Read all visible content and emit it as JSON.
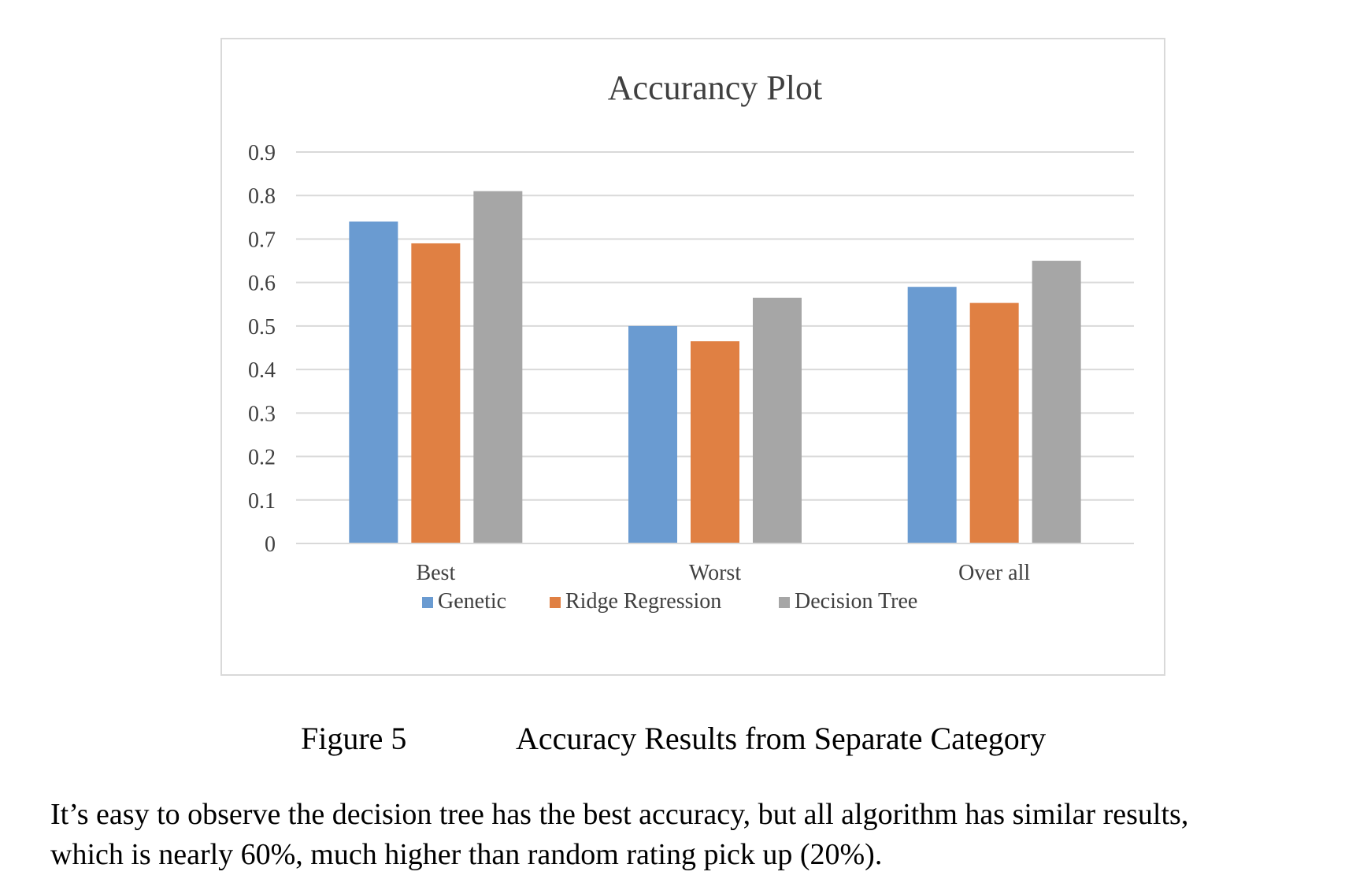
{
  "chart_data": {
    "type": "bar",
    "title": "Accurancy Plot",
    "categories": [
      "Best",
      "Worst",
      "Over all"
    ],
    "series": [
      {
        "name": "Genetic",
        "values": [
          0.74,
          0.5,
          0.59
        ],
        "color": "#6a9bd1"
      },
      {
        "name": "Ridge Regression",
        "values": [
          0.69,
          0.465,
          0.553
        ],
        "color": "#e08043"
      },
      {
        "name": "Decision Tree",
        "values": [
          0.81,
          0.565,
          0.65
        ],
        "color": "#a6a6a6"
      }
    ],
    "ylim": [
      0,
      0.9
    ],
    "yticks": [
      "0",
      "0.1",
      "0.2",
      "0.3",
      "0.4",
      "0.5",
      "0.6",
      "0.7",
      "0.8",
      "0.9"
    ],
    "grid": true,
    "legend": "bottom"
  },
  "caption": {
    "number": "Figure 5",
    "text": "Accuracy Results from Separate Category"
  },
  "paragraph": {
    "line1": "It’s easy to observe the decision tree has the best accuracy, but all algorithm has similar results,",
    "line2": "which is nearly 60%, much higher than random rating pick up (20%)."
  }
}
